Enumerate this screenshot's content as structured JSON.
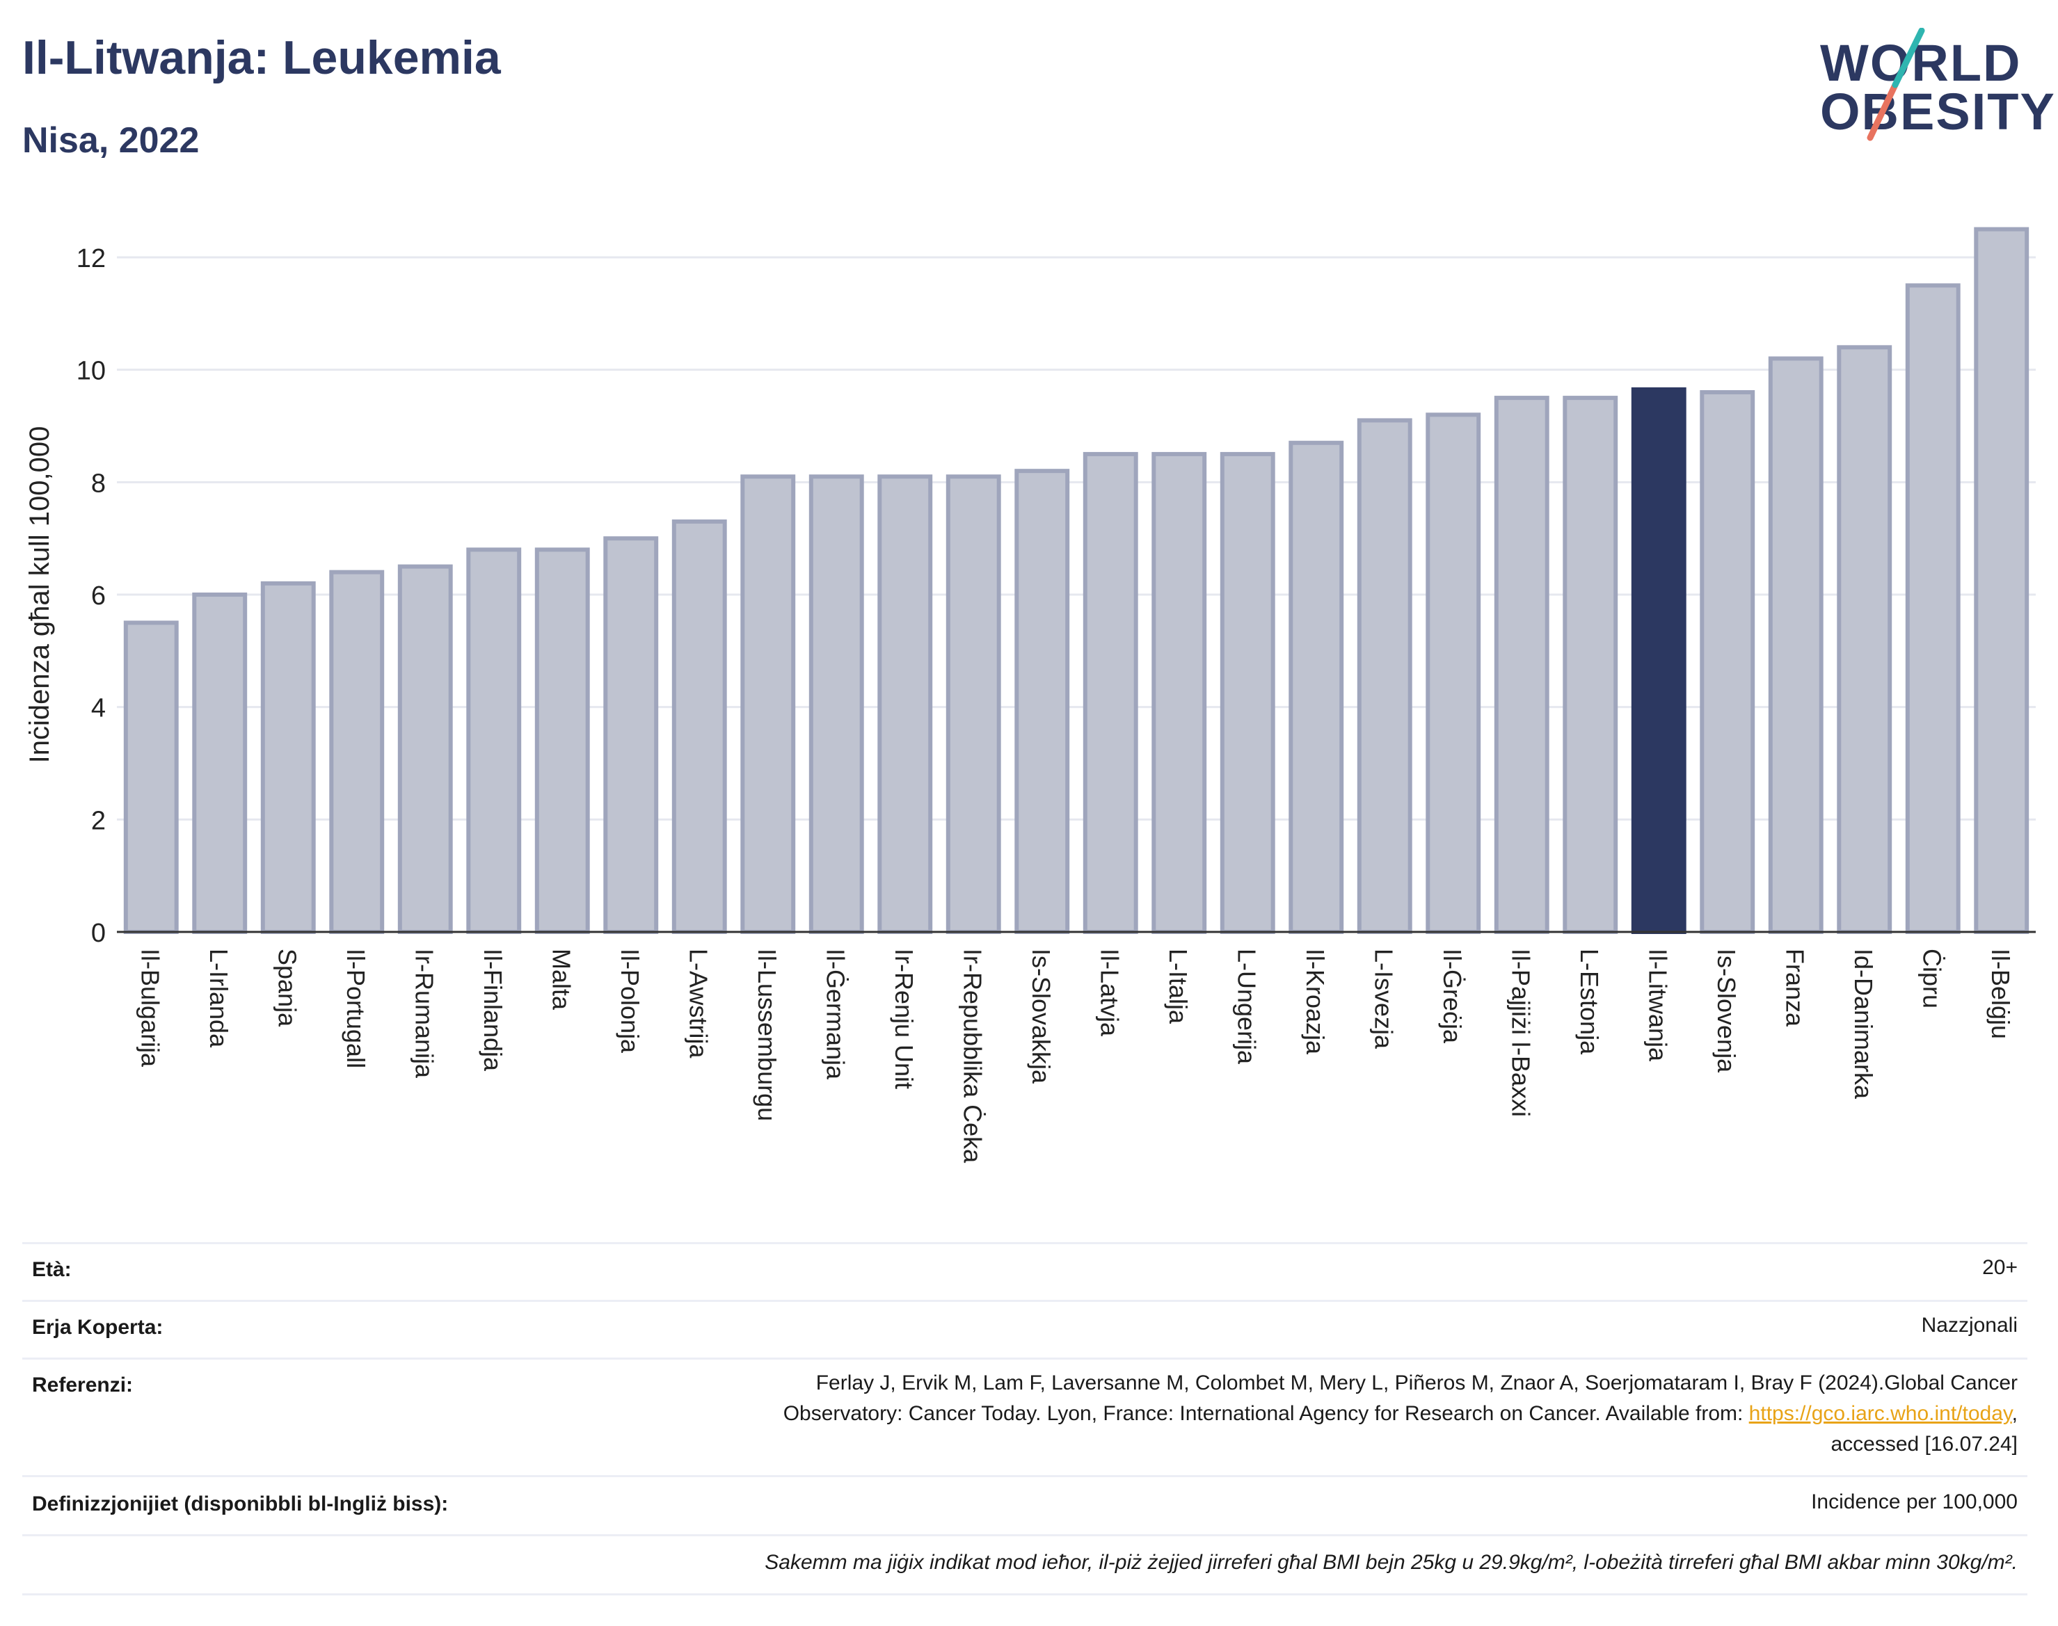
{
  "header": {
    "title": "Il-Litwanja: Leukemia",
    "subtitle": "Nisa, 2022"
  },
  "logo": {
    "line1": "WORLD",
    "line2": "OBESITY"
  },
  "chart_data": {
    "type": "bar",
    "ylabel": "Inċidenza għal kull 100,000",
    "xlabel": "",
    "ylim": [
      0,
      12.6
    ],
    "yticks": [
      0,
      2,
      4,
      6,
      8,
      10,
      12
    ],
    "grid": true,
    "categories": [
      "Il-Bulgarija",
      "L-Irlanda",
      "Spanja",
      "Il-Portugall",
      "Ir-Rumanija",
      "Il-Finlandja",
      "Malta",
      "Il-Polonja",
      "L-Awstrija",
      "Il-Lussemburgu",
      "Il-Ġermanja",
      "Ir-Renju Unit",
      "Ir-Repubblika Ċeka",
      "Is-Slovakkja",
      "Il-Latvja",
      "L-Italja",
      "L-Ungerija",
      "Il-Kroazja",
      "L-Isvezja",
      "Il-Ġreċja",
      "Il-Pajjiżi l-Baxxi",
      "L-Estonja",
      "Il-Litwanja",
      "Is-Slovenja",
      "Franza",
      "Id-Danimarka",
      "Ċipru",
      "Il-Belġju"
    ],
    "values": [
      5.5,
      6.0,
      6.2,
      6.4,
      6.5,
      6.8,
      6.8,
      7.0,
      7.3,
      8.1,
      8.1,
      8.1,
      8.1,
      8.2,
      8.5,
      8.5,
      8.5,
      8.7,
      9.1,
      9.2,
      9.5,
      9.5,
      9.65,
      9.6,
      10.2,
      10.4,
      11.5,
      12.5
    ],
    "highlight": "Il-Litwanja",
    "colors": {
      "bar": "#bfc3d0",
      "bar_border": "#9fa5bc",
      "highlight": "#2c3861",
      "grid": "#e6e8ef",
      "axis": "#333333"
    }
  },
  "meta": {
    "age_label": "Età:",
    "age_value": "20+",
    "area_label": "Erja Koperta:",
    "area_value": "Nazzjonali",
    "ref_label": "Referenzi:",
    "ref_line1": "Ferlay J, Ervik M, Lam F, Laversanne M, Colombet M, Mery L, Piñeros M, Znaor A, Soerjomataram I, Bray F (2024).Global Cancer",
    "ref_line2_pre": "Observatory: Cancer Today. Lyon, France: International Agency for Research on Cancer. Available from: ",
    "ref_link": "https://gco.iarc.who.int/today",
    "ref_line2_post": ",",
    "ref_line3": "accessed [16.07.24]",
    "def_label": "Definizzjonijiet (disponibbli bl-Ingliż biss):",
    "def_value": "Incidence per 100,000",
    "note": "Sakemm ma jiġix indikat mod ieħor, il-piż żejjed jirreferi għal BMI bejn 25kg u 29.9kg/m², l-obeżità tirreferi għal BMI akbar minn 30kg/m²."
  }
}
